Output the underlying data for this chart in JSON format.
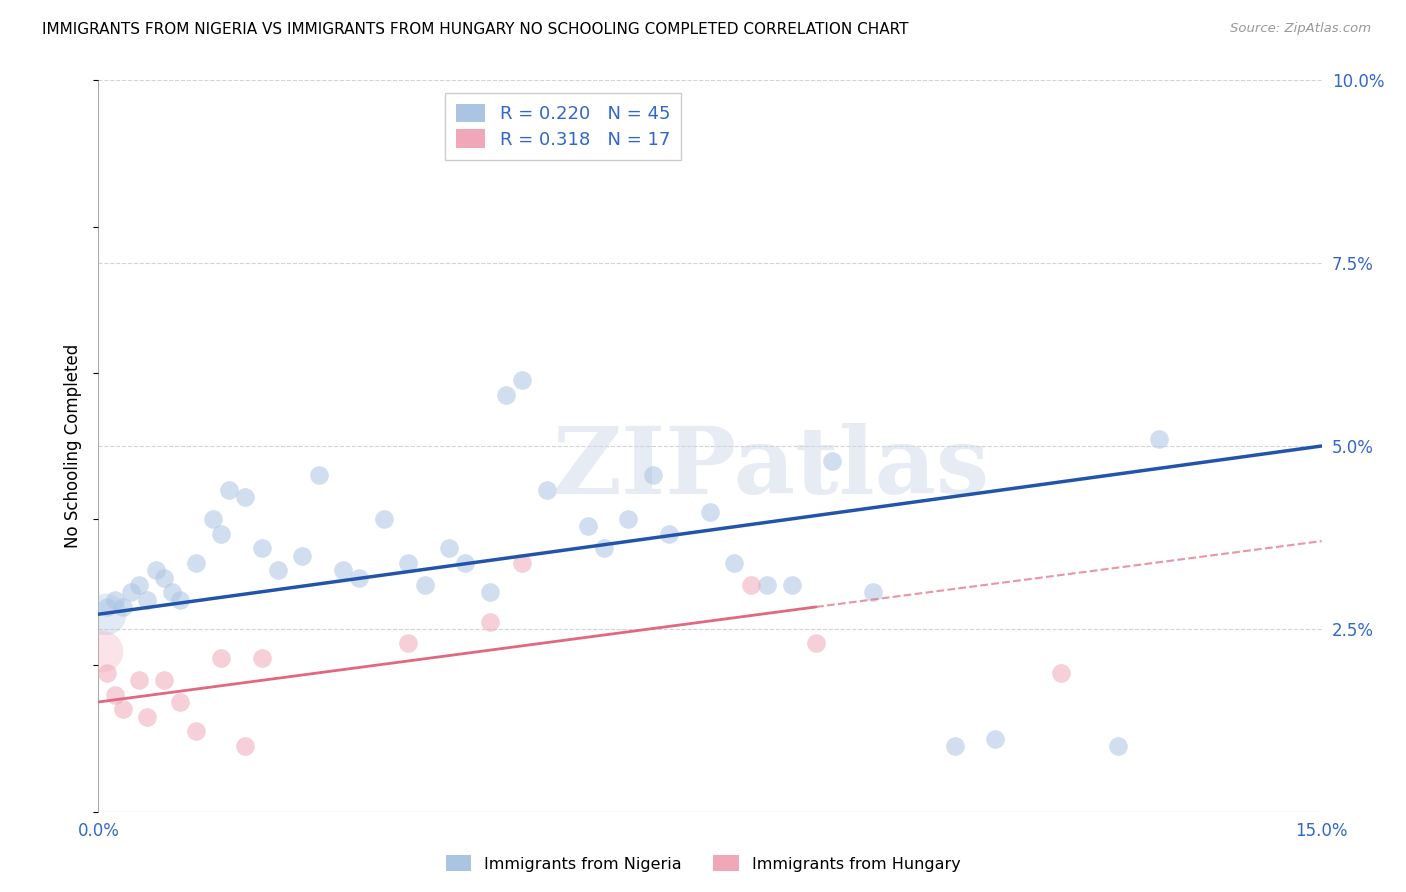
{
  "title": "IMMIGRANTS FROM NIGERIA VS IMMIGRANTS FROM HUNGARY NO SCHOOLING COMPLETED CORRELATION CHART",
  "source": "Source: ZipAtlas.com",
  "ylabel": "No Schooling Completed",
  "xlim": [
    0.0,
    0.15
  ],
  "ylim": [
    0.0,
    0.1
  ],
  "background_color": "#ffffff",
  "grid_color": "#c8c8c8",
  "nigeria_color": "#aac4e2",
  "hungary_color": "#f0a8b8",
  "nigeria_line_color": "#2255aa",
  "hungary_line_color": "#e06880",
  "nigeria_R": 0.22,
  "nigeria_N": 45,
  "hungary_R": 0.318,
  "hungary_N": 17,
  "nigeria_scatter_x": [
    0.001,
    0.002,
    0.003,
    0.004,
    0.005,
    0.006,
    0.007,
    0.008,
    0.009,
    0.01,
    0.012,
    0.014,
    0.015,
    0.016,
    0.018,
    0.02,
    0.022,
    0.025,
    0.027,
    0.03,
    0.032,
    0.035,
    0.038,
    0.04,
    0.043,
    0.045,
    0.048,
    0.05,
    0.052,
    0.055,
    0.06,
    0.062,
    0.065,
    0.068,
    0.07,
    0.075,
    0.078,
    0.082,
    0.085,
    0.09,
    0.095,
    0.105,
    0.11,
    0.125,
    0.13
  ],
  "nigeria_scatter_y": [
    0.028,
    0.029,
    0.028,
    0.03,
    0.031,
    0.029,
    0.033,
    0.032,
    0.03,
    0.029,
    0.034,
    0.04,
    0.038,
    0.044,
    0.043,
    0.036,
    0.033,
    0.035,
    0.046,
    0.033,
    0.032,
    0.04,
    0.034,
    0.031,
    0.036,
    0.034,
    0.03,
    0.057,
    0.059,
    0.044,
    0.039,
    0.036,
    0.04,
    0.046,
    0.038,
    0.041,
    0.034,
    0.031,
    0.031,
    0.048,
    0.03,
    0.009,
    0.01,
    0.009,
    0.051
  ],
  "hungary_scatter_x": [
    0.001,
    0.002,
    0.003,
    0.005,
    0.006,
    0.008,
    0.01,
    0.012,
    0.015,
    0.018,
    0.02,
    0.038,
    0.048,
    0.052,
    0.08,
    0.088,
    0.118
  ],
  "hungary_scatter_y": [
    0.019,
    0.016,
    0.014,
    0.018,
    0.013,
    0.018,
    0.015,
    0.011,
    0.021,
    0.009,
    0.021,
    0.023,
    0.026,
    0.034,
    0.031,
    0.023,
    0.019
  ],
  "nigeria_trendline_x": [
    0.0,
    0.15
  ],
  "nigeria_trendline_y": [
    0.027,
    0.05
  ],
  "hungary_solid_trendline_x": [
    0.0,
    0.088
  ],
  "hungary_solid_trendline_y": [
    0.015,
    0.028
  ],
  "hungary_dashed_trendline_x": [
    0.088,
    0.15
  ],
  "hungary_dashed_trendline_y": [
    0.028,
    0.037
  ],
  "scatter_size": 180,
  "scatter_alpha": 0.55,
  "large_point_size": 900,
  "watermark_text": "ZIPatlas",
  "watermark_fontsize": 68,
  "watermark_color": "#d0d8e8",
  "watermark_alpha": 0.5
}
